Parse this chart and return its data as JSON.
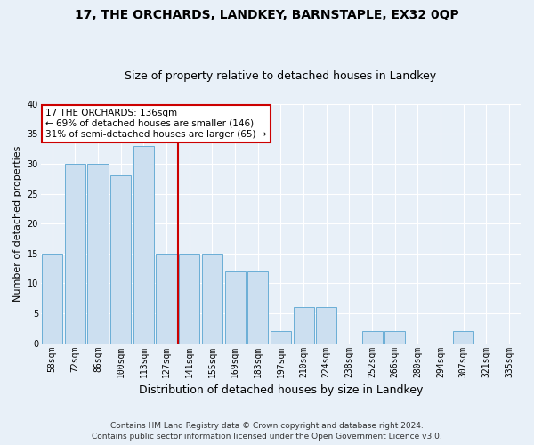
{
  "title1": "17, THE ORCHARDS, LANDKEY, BARNSTAPLE, EX32 0QP",
  "title2": "Size of property relative to detached houses in Landkey",
  "xlabel": "Distribution of detached houses by size in Landkey",
  "ylabel": "Number of detached properties",
  "categories": [
    "58sqm",
    "72sqm",
    "86sqm",
    "100sqm",
    "113sqm",
    "127sqm",
    "141sqm",
    "155sqm",
    "169sqm",
    "183sqm",
    "197sqm",
    "210sqm",
    "224sqm",
    "238sqm",
    "252sqm",
    "266sqm",
    "280sqm",
    "294sqm",
    "307sqm",
    "321sqm",
    "335sqm"
  ],
  "values": [
    15,
    30,
    30,
    28,
    33,
    15,
    15,
    15,
    12,
    12,
    2,
    6,
    6,
    0,
    2,
    2,
    0,
    0,
    2,
    0,
    0
  ],
  "bar_color": "#ccdff0",
  "bar_edge_color": "#6aaed6",
  "property_label": "17 THE ORCHARDS: 136sqm",
  "annotation_line1": "← 69% of detached houses are smaller (146)",
  "annotation_line2": "31% of semi-detached houses are larger (65) →",
  "annotation_box_color": "white",
  "annotation_box_edge_color": "#cc0000",
  "vline_color": "#cc0000",
  "vline_index": 6,
  "ylim": [
    0,
    40
  ],
  "yticks": [
    0,
    5,
    10,
    15,
    20,
    25,
    30,
    35,
    40
  ],
  "footer1": "Contains HM Land Registry data © Crown copyright and database right 2024.",
  "footer2": "Contains public sector information licensed under the Open Government Licence v3.0.",
  "bg_color": "#e8f0f8",
  "grid_color": "#ffffff",
  "title1_fontsize": 10,
  "title2_fontsize": 9,
  "ylabel_fontsize": 8,
  "xlabel_fontsize": 9,
  "tick_fontsize": 7,
  "ann_fontsize": 7.5,
  "footer_fontsize": 6.5
}
